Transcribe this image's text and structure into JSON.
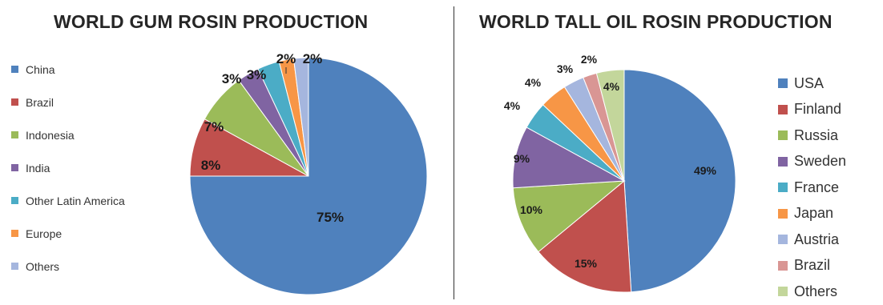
{
  "chart_data": [
    {
      "type": "pie",
      "title": "WORLD GUM ROSIN PRODUCTION",
      "labels": [
        "China",
        "Brazil",
        "Indonesia",
        "India",
        "Other Latin America",
        "Europe",
        "Others"
      ],
      "values": [
        75,
        8,
        7,
        3,
        3,
        2,
        2
      ],
      "value_labels": [
        "75%",
        "8%",
        "7%",
        "3%",
        "3%",
        "2%",
        "2%"
      ],
      "colors": [
        "#4F81BD",
        "#C0504D",
        "#9BBB59",
        "#8064A2",
        "#4BACC6",
        "#F79646",
        "#A5B6DE"
      ],
      "legend_position": "left"
    },
    {
      "type": "pie",
      "title": "WORLD TALL OIL ROSIN PRODUCTION",
      "labels": [
        "USA",
        "Finland",
        "Russia",
        "Sweden",
        "France",
        "Japan",
        "Austria",
        "Brazil",
        "Others"
      ],
      "values": [
        49,
        15,
        10,
        9,
        4,
        4,
        3,
        2,
        4
      ],
      "value_labels": [
        "49%",
        "15%",
        "10%",
        "9%",
        "4%",
        "4%",
        "3%",
        "2%",
        "4%"
      ],
      "colors": [
        "#4F81BD",
        "#C0504D",
        "#9BBB59",
        "#8064A2",
        "#4BACC6",
        "#F79646",
        "#A5B6DE",
        "#D99694",
        "#C3D69B"
      ],
      "legend_position": "right"
    }
  ]
}
